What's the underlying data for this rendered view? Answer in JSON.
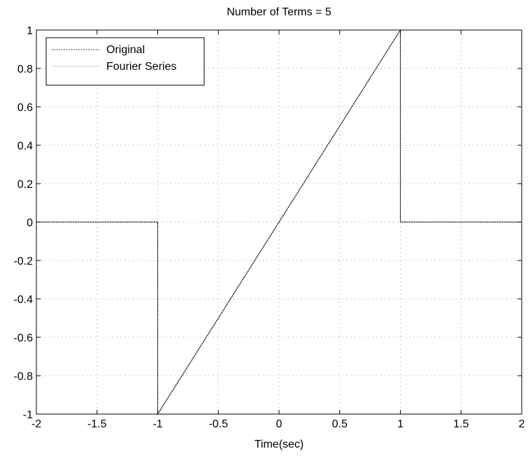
{
  "chart_data": {
    "type": "line",
    "title": "Number of Terms = 5",
    "xlabel": "Time(sec)",
    "ylabel": "",
    "xlim": [
      -2,
      2
    ],
    "ylim": [
      -1,
      1
    ],
    "xticks": [
      -2,
      -1.5,
      -1,
      -0.5,
      0,
      0.5,
      1,
      1.5,
      2
    ],
    "xtick_labels": [
      "-2",
      "-1.5",
      "-1",
      "-0.5",
      "0",
      "0.5",
      "1",
      "1.5",
      "2"
    ],
    "yticks": [
      -1,
      -0.8,
      -0.6,
      -0.4,
      -0.2,
      0,
      0.2,
      0.4,
      0.6,
      0.8,
      1
    ],
    "ytick_labels": [
      "-1",
      "-0.8",
      "-0.6",
      "-0.4",
      "-0.2",
      "0",
      "0.2",
      "0.4",
      "0.6",
      "0.8",
      "1"
    ],
    "grid": true,
    "legend_position": "top-left",
    "series": [
      {
        "name": "Original",
        "style": "dotted",
        "color": "#000000",
        "x": [
          -2,
          -1,
          -1,
          1,
          1,
          2
        ],
        "y": [
          0,
          0,
          -1,
          1,
          0,
          0
        ]
      },
      {
        "name": "Fourier Series",
        "style": "solid",
        "color": "#000000",
        "x": [
          -2,
          -1,
          -1,
          1,
          1,
          2
        ],
        "y": [
          0,
          0,
          -1,
          1,
          0,
          0
        ]
      }
    ]
  }
}
